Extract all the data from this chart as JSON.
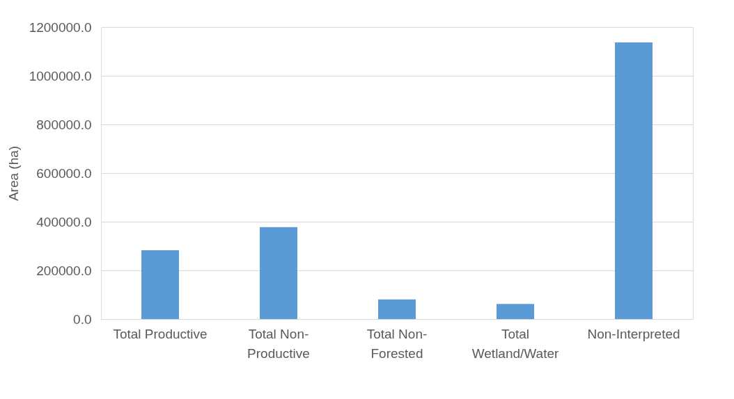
{
  "chart_data": {
    "type": "bar",
    "ylabel": "Area (ha)",
    "categories": [
      "Total Productive",
      "Total Non-Productive",
      "Total Non-Forested",
      "Total Wetland/Water",
      "Non-Interpreted"
    ],
    "values": [
      283000,
      378000,
      81000,
      62000,
      1137000
    ],
    "color": "#5b9bd5",
    "ylim": [
      0,
      1200000
    ],
    "yticks": [
      {
        "value": 0,
        "label": "0.0"
      },
      {
        "value": 200000,
        "label": "200000.0"
      },
      {
        "value": 400000,
        "label": "400000.0"
      },
      {
        "value": 600000,
        "label": "600000.0"
      },
      {
        "value": 800000,
        "label": "800000.0"
      },
      {
        "value": 1000000,
        "label": "1000000.0"
      },
      {
        "value": 1200000,
        "label": "1200000.0"
      }
    ],
    "grid": "y"
  }
}
